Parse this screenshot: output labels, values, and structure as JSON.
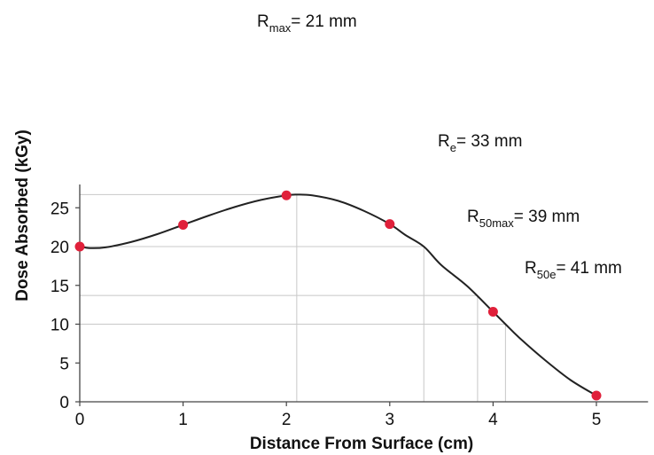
{
  "chart_data": {
    "type": "line",
    "xlabel": "Distance From Surface (cm)",
    "ylabel": "Dose Absorbed (kGy)",
    "xlim": [
      0,
      5.5
    ],
    "ylim": [
      0,
      28
    ],
    "x_ticks": [
      0,
      1,
      2,
      3,
      4,
      5
    ],
    "y_ticks": [
      0,
      5,
      10,
      15,
      20,
      25
    ],
    "grid": false,
    "series": [
      {
        "color": "#e0203a",
        "points": [
          {
            "x": 0,
            "y": 20.0
          },
          {
            "x": 1,
            "y": 22.8
          },
          {
            "x": 2,
            "y": 26.6
          },
          {
            "x": 3,
            "y": 22.9
          },
          {
            "x": 4,
            "y": 11.6
          },
          {
            "x": 5,
            "y": 0.8
          }
        ]
      }
    ],
    "curve": [
      [
        0.0,
        20.0
      ],
      [
        0.1,
        19.8
      ],
      [
        0.25,
        19.9
      ],
      [
        0.5,
        20.6
      ],
      [
        0.75,
        21.6
      ],
      [
        1.0,
        22.8
      ],
      [
        1.25,
        24.0
      ],
      [
        1.5,
        25.1
      ],
      [
        1.75,
        26.0
      ],
      [
        2.0,
        26.6
      ],
      [
        2.1,
        26.7
      ],
      [
        2.25,
        26.6
      ],
      [
        2.5,
        25.9
      ],
      [
        2.75,
        24.6
      ],
      [
        3.0,
        22.9
      ],
      [
        3.15,
        21.5
      ],
      [
        3.33,
        20.0
      ],
      [
        3.5,
        17.6
      ],
      [
        3.75,
        14.9
      ],
      [
        4.0,
        11.6
      ],
      [
        4.12,
        10.0
      ],
      [
        4.25,
        8.3
      ],
      [
        4.5,
        5.4
      ],
      [
        4.75,
        2.8
      ],
      [
        5.0,
        0.8
      ]
    ],
    "reference_lines": [
      {
        "x": 2.1,
        "y": 26.7,
        "label": {
          "base": "R",
          "sub": "max",
          "rest": "= 21 mm"
        }
      },
      {
        "x": 3.33,
        "y": 20.0,
        "label": {
          "base": "R",
          "sub": "e",
          "rest": "= 33 mm"
        }
      },
      {
        "x": 3.85,
        "y": 13.7,
        "label": {
          "base": "R",
          "sub": "50max",
          "rest": "= 39 mm"
        }
      },
      {
        "x": 4.12,
        "y": 10.0,
        "label": {
          "base": "R",
          "sub": "50e",
          "rest": "= 41 mm"
        }
      }
    ],
    "colors": {
      "curve": "#222222",
      "points": "#e0203a",
      "reference": "#c8c8c8",
      "axis": "#444444"
    }
  }
}
